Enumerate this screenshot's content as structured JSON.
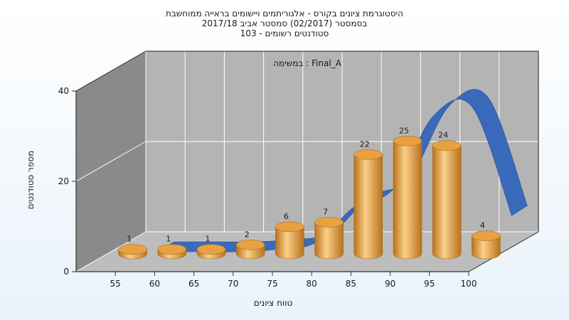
{
  "chart_data": {
    "type": "bar",
    "title_lines": [
      "היסטוגרמת ציונים בקורס - אלגוריתמים ויישומים בראייה ממוחשבת",
      "בסמסטר  (02/2017)  סמסטר אביב 2017/18",
      "סטודנטים רשומים - 103"
    ],
    "annotation": "במשימה : Final_A",
    "xlabel": "טווח ציונים",
    "ylabel": "מספר סטודנטים",
    "categories": [
      "55",
      "60",
      "65",
      "70",
      "75",
      "80",
      "85",
      "90",
      "95",
      "100"
    ],
    "values": [
      1,
      1,
      1,
      2,
      6,
      7,
      22,
      25,
      24,
      4
    ],
    "series": [
      {
        "values": [
          1,
          1,
          1,
          2,
          6,
          7,
          22,
          25,
          24,
          4
        ],
        "style": "3d-cylinder"
      },
      {
        "values": [
          0,
          0,
          0,
          0.5,
          2,
          10,
          14,
          30,
          32,
          8
        ],
        "style": "3d-spline-ribbon"
      }
    ],
    "ylim": [
      0,
      40
    ],
    "yticks": [
      0,
      20,
      40
    ],
    "grid": true,
    "legend": "none",
    "colors": {
      "bar": "#e8a040",
      "bar_dark": "#b8711c",
      "bar_light": "#fbd089",
      "ribbon": "#3366bb",
      "ribbon_dark": "#1e4a96",
      "back_wall": "#b4b4b4",
      "side_wall": "#8a8a8a",
      "floor": "#bdbdbd",
      "grid": "#ffffff"
    }
  }
}
